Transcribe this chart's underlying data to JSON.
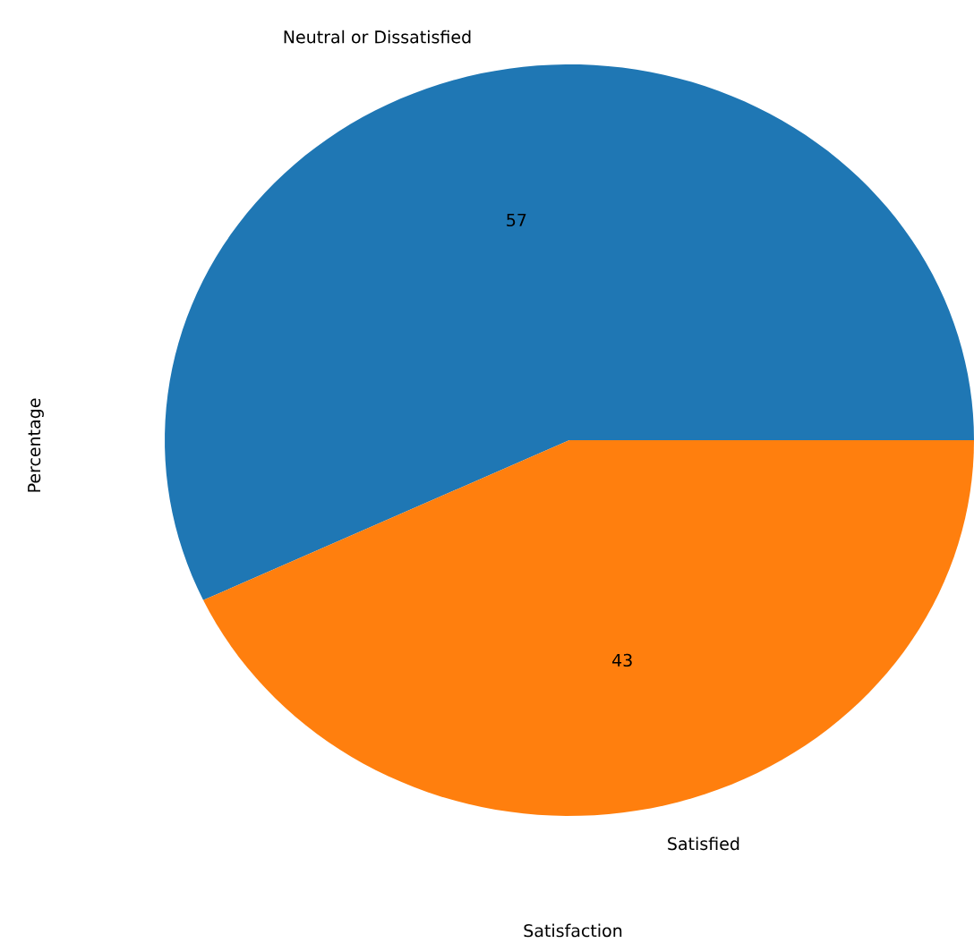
{
  "chart_data": {
    "type": "pie",
    "xlabel": "Satisfaction",
    "ylabel": "Percentage",
    "categories": [
      "Neutral or Dissatisfied",
      "Satisfied"
    ],
    "values": [
      57,
      43
    ],
    "colors": [
      "#1f77b4",
      "#ff7f0e"
    ],
    "data_labels": true
  }
}
